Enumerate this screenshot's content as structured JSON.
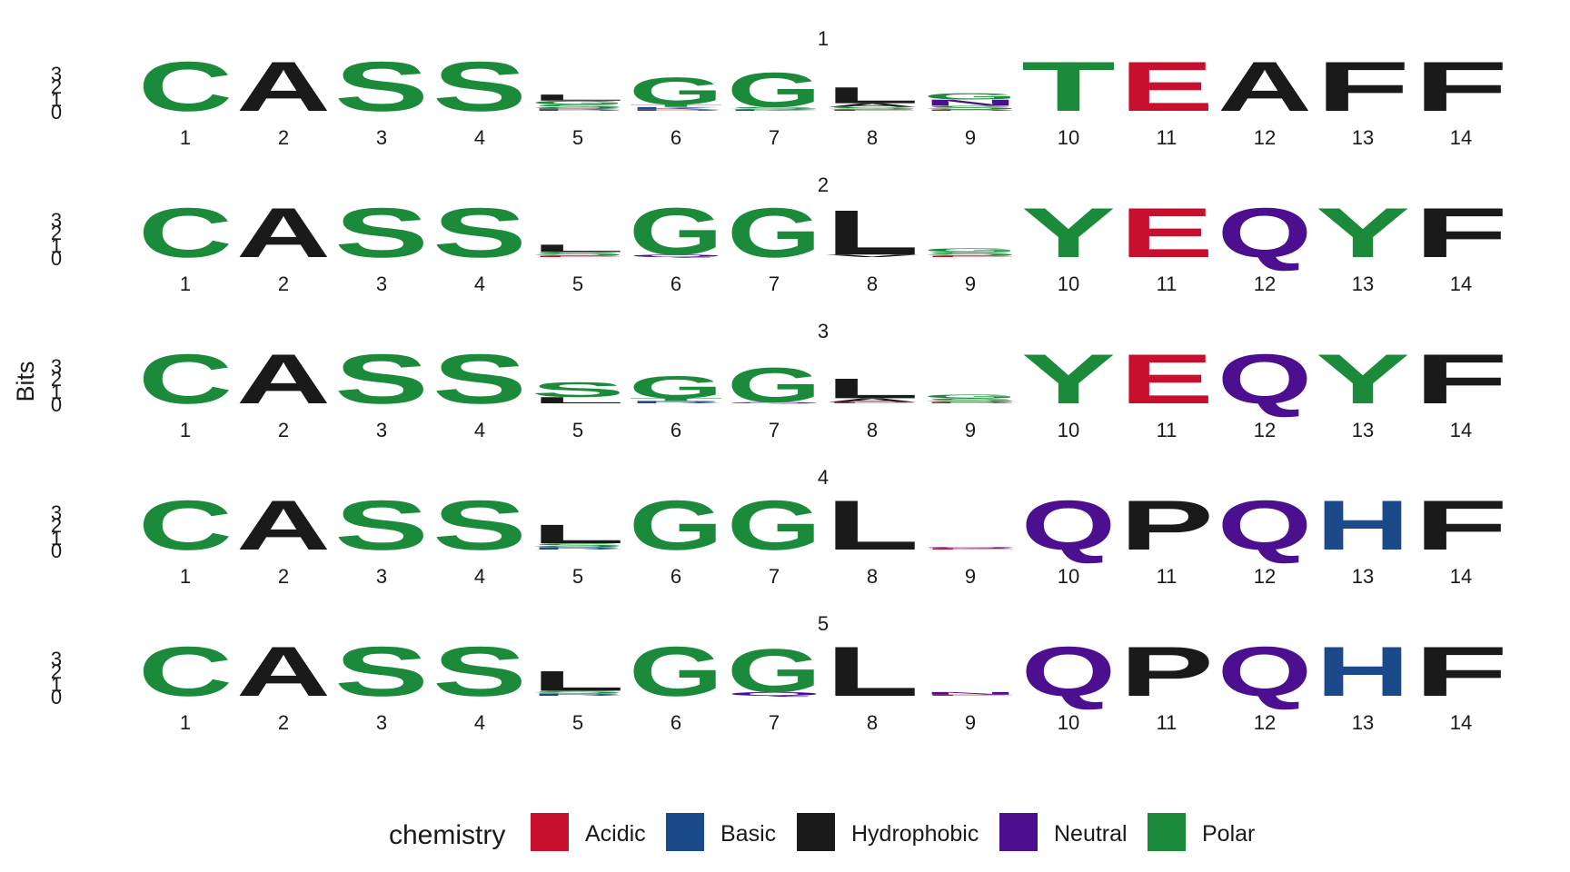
{
  "chart_data": {
    "type": "sequence-logo",
    "ylabel": "Bits",
    "y_ticks": [
      "0",
      "1",
      "2",
      "3"
    ],
    "ylim": [
      0,
      3
    ],
    "positions": [
      "1",
      "2",
      "3",
      "4",
      "5",
      "6",
      "7",
      "8",
      "9",
      "10",
      "11",
      "12",
      "13",
      "14"
    ],
    "colors": {
      "Acidic": "#C8102E",
      "Basic": "#1A4A8A",
      "Hydrophobic": "#1A1A1A",
      "Neutral": "#4B0F8F",
      "Polar": "#1B8A3A"
    },
    "chemistry": {
      "A": "Hydrophobic",
      "F": "Hydrophobic",
      "L": "Hydrophobic",
      "P": "Hydrophobic",
      "V": "Hydrophobic",
      "I": "Hydrophobic",
      "M": "Hydrophobic",
      "W": "Hydrophobic",
      "C": "Polar",
      "S": "Polar",
      "G": "Polar",
      "T": "Polar",
      "Y": "Polar",
      "E": "Acidic",
      "D": "Acidic",
      "H": "Basic",
      "K": "Basic",
      "R": "Basic",
      "Q": "Neutral",
      "N": "Neutral"
    },
    "panels": [
      {
        "title": "1",
        "columns": [
          [
            [
              "C",
              4.0
            ]
          ],
          [
            [
              "A",
              4.0
            ]
          ],
          [
            [
              "S",
              4.0
            ]
          ],
          [
            [
              "S",
              4.0
            ]
          ],
          [
            [
              "D",
              0.1
            ],
            [
              "R",
              0.1
            ],
            [
              "S",
              0.3
            ],
            [
              "G",
              0.3
            ],
            [
              "L",
              0.5
            ]
          ],
          [
            [
              "D",
              0.1
            ],
            [
              "K",
              0.2
            ],
            [
              "T",
              0.2
            ],
            [
              "G",
              2.2
            ]
          ],
          [
            [
              "K",
              0.1
            ],
            [
              "S",
              0.2
            ],
            [
              "G",
              2.8
            ]
          ],
          [
            [
              "E",
              0.1
            ],
            [
              "S",
              0.2
            ],
            [
              "A",
              0.3
            ],
            [
              "L",
              1.3
            ]
          ],
          [
            [
              "D",
              0.1
            ],
            [
              "S",
              0.3
            ],
            [
              "N",
              0.5
            ],
            [
              "G",
              0.5
            ]
          ],
          [
            [
              "T",
              4.0
            ]
          ],
          [
            [
              "E",
              4.0
            ]
          ],
          [
            [
              "A",
              4.0
            ]
          ],
          [
            [
              "F",
              4.0
            ]
          ],
          [
            [
              "F",
              4.0
            ]
          ]
        ]
      },
      {
        "title": "2",
        "columns": [
          [
            [
              "C",
              4.0
            ]
          ],
          [
            [
              "A",
              4.0
            ]
          ],
          [
            [
              "S",
              4.0
            ]
          ],
          [
            [
              "S",
              4.0
            ]
          ],
          [
            [
              "E",
              0.1
            ],
            [
              "S",
              0.3
            ],
            [
              "L",
              0.6
            ]
          ],
          [
            [
              "Q",
              0.2
            ],
            [
              "G",
              3.8
            ]
          ],
          [
            [
              "G",
              4.0
            ]
          ],
          [
            [
              "V",
              0.2
            ],
            [
              "L",
              3.6
            ]
          ],
          [
            [
              "E",
              0.1
            ],
            [
              "S",
              0.3
            ],
            [
              "G",
              0.3
            ]
          ],
          [
            [
              "Y",
              4.0
            ]
          ],
          [
            [
              "E",
              4.0
            ]
          ],
          [
            [
              "Q",
              4.0
            ]
          ],
          [
            [
              "Y",
              4.0
            ]
          ],
          [
            [
              "F",
              4.0
            ]
          ]
        ]
      },
      {
        "title": "3",
        "columns": [
          [
            [
              "C",
              4.0
            ]
          ],
          [
            [
              "A",
              4.0
            ]
          ],
          [
            [
              "S",
              4.0
            ]
          ],
          [
            [
              "S",
              4.0
            ]
          ],
          [
            [
              "L",
              0.5
            ],
            [
              "S",
              1.2
            ]
          ],
          [
            [
              "R",
              0.2
            ],
            [
              "T",
              0.2
            ],
            [
              "G",
              1.8
            ]
          ],
          [
            [
              "Q",
              0.1
            ],
            [
              "G",
              2.8
            ]
          ],
          [
            [
              "E",
              0.1
            ],
            [
              "A",
              0.3
            ],
            [
              "L",
              1.6
            ]
          ],
          [
            [
              "D",
              0.1
            ],
            [
              "S",
              0.3
            ],
            [
              "G",
              0.3
            ]
          ],
          [
            [
              "Y",
              4.0
            ]
          ],
          [
            [
              "E",
              4.0
            ]
          ],
          [
            [
              "Q",
              4.0
            ]
          ],
          [
            [
              "Y",
              4.0
            ]
          ],
          [
            [
              "F",
              4.0
            ]
          ]
        ]
      },
      {
        "title": "4",
        "columns": [
          [
            [
              "C",
              4.0
            ]
          ],
          [
            [
              "A",
              4.0
            ]
          ],
          [
            [
              "S",
              4.0
            ]
          ],
          [
            [
              "S",
              4.0
            ]
          ],
          [
            [
              "R",
              0.2
            ],
            [
              "S",
              0.3
            ],
            [
              "L",
              1.5
            ]
          ],
          [
            [
              "G",
              4.0
            ]
          ],
          [
            [
              "G",
              4.0
            ]
          ],
          [
            [
              "L",
              4.0
            ]
          ],
          [
            [
              "E",
              0.1
            ],
            [
              "Q",
              0.1
            ]
          ],
          [
            [
              "Q",
              4.0
            ]
          ],
          [
            [
              "P",
              4.0
            ]
          ],
          [
            [
              "Q",
              4.0
            ]
          ],
          [
            [
              "H",
              4.0
            ]
          ],
          [
            [
              "F",
              4.0
            ]
          ]
        ]
      },
      {
        "title": "5",
        "columns": [
          [
            [
              "C",
              4.0
            ]
          ],
          [
            [
              "A",
              4.0
            ]
          ],
          [
            [
              "S",
              4.0
            ]
          ],
          [
            [
              "S",
              4.0
            ]
          ],
          [
            [
              "R",
              0.2
            ],
            [
              "S",
              0.2
            ],
            [
              "L",
              1.6
            ]
          ],
          [
            [
              "G",
              4.0
            ]
          ],
          [
            [
              "Q",
              0.3
            ],
            [
              "G",
              3.5
            ]
          ],
          [
            [
              "L",
              4.0
            ]
          ],
          [
            [
              "E",
              0.1
            ],
            [
              "N",
              0.2
            ]
          ],
          [
            [
              "Q",
              4.0
            ]
          ],
          [
            [
              "P",
              4.0
            ]
          ],
          [
            [
              "Q",
              4.0
            ]
          ],
          [
            [
              "H",
              4.0
            ]
          ],
          [
            [
              "F",
              4.0
            ]
          ]
        ]
      }
    ],
    "legend": {
      "title": "chemistry",
      "position": "bottom",
      "items": [
        "Acidic",
        "Basic",
        "Hydrophobic",
        "Neutral",
        "Polar"
      ]
    }
  }
}
